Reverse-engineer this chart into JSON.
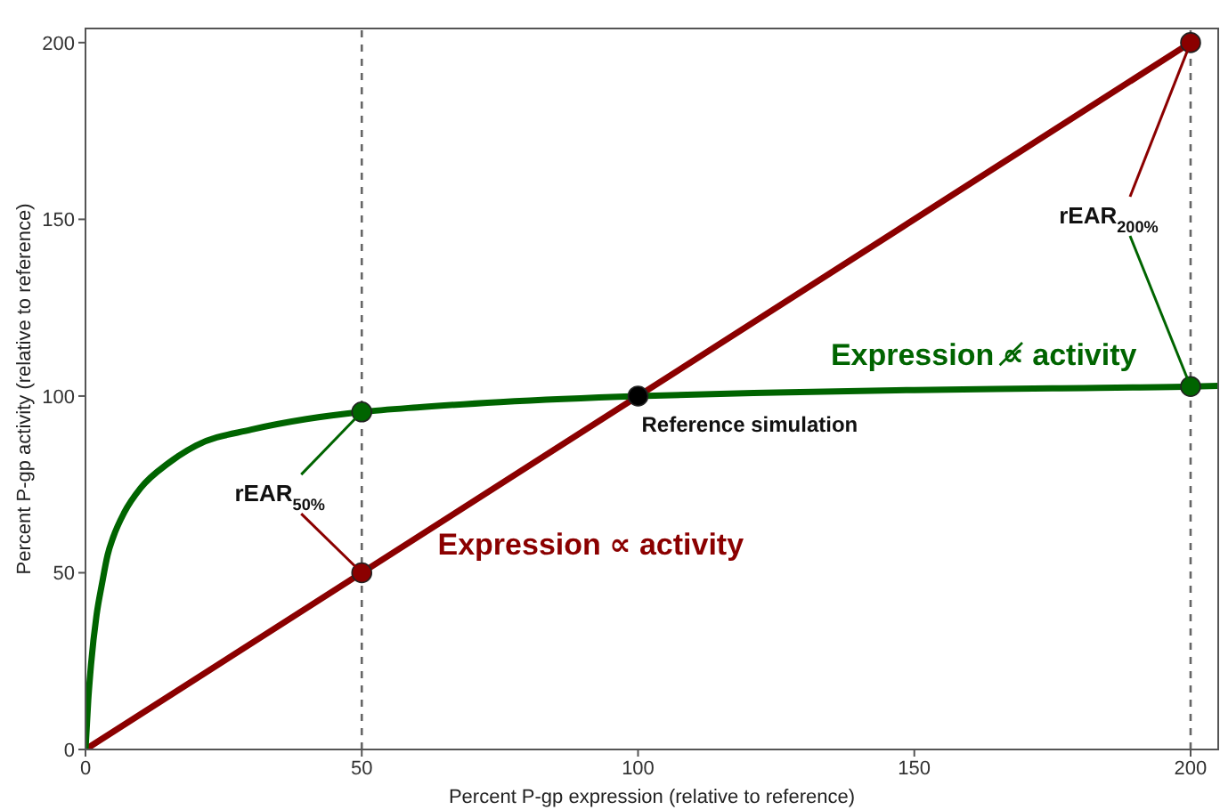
{
  "chart_data": {
    "type": "line",
    "xlabel": "Percent P-gp expression (relative to reference)",
    "ylabel": "Percent P-gp activity (relative to reference)",
    "xlim": [
      0,
      205
    ],
    "ylim": [
      0,
      204
    ],
    "xticks": [
      0,
      50,
      100,
      150,
      200
    ],
    "yticks": [
      0,
      50,
      100,
      150,
      200
    ],
    "line_style": "solid",
    "series": [
      {
        "name": "Expression ∝ activity",
        "color": "#8b0000",
        "x": [
          0,
          200
        ],
        "values": [
          0,
          200
        ]
      },
      {
        "name": "Expression ∝̸ activity",
        "color": "#006400",
        "x": [
          0,
          0.5,
          1,
          2,
          3,
          4,
          5,
          7,
          10,
          15,
          20,
          30,
          40,
          50,
          60,
          75,
          100,
          125,
          150,
          175,
          200,
          205
        ],
        "values": [
          0,
          14,
          24,
          38,
          47,
          55,
          60,
          67,
          74,
          81,
          86,
          90.5,
          93.5,
          95.5,
          96.8,
          98.3,
          100,
          101,
          101.7,
          102.2,
          102.7,
          102.9
        ]
      },
      {
        "type": "scatter",
        "marker": "circle",
        "x": [
          50,
          200,
          50,
          200,
          100
        ],
        "values": [
          50,
          200,
          95.5,
          102.7,
          100
        ],
        "colors": [
          "#8b0000",
          "#8b0000",
          "#006400",
          "#006400",
          "#000000"
        ]
      }
    ],
    "ref_lines": [
      {
        "axis": "x",
        "value": 50,
        "color": "#666666",
        "line_style": "dashed"
      },
      {
        "axis": "x",
        "value": 200,
        "color": "#666666",
        "line_style": "dashed"
      }
    ],
    "annotations": [
      {
        "text": "rEAR$_{50%}$",
        "x": 50
      },
      {
        "text": "rEAR$_{200%}$",
        "x": 200
      },
      {
        "text": "Reference simulation",
        "x": 100,
        "y": 100
      }
    ]
  }
}
